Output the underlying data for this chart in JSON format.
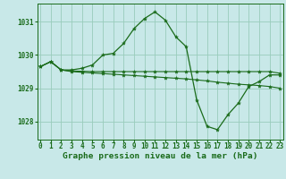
{
  "background_color": "#c8e8e8",
  "grid_color": "#99ccbb",
  "line_color": "#1a6b1a",
  "title": "Graphe pression niveau de la mer (hPa)",
  "tick_fontsize": 5.5,
  "xlabel_fontsize": 6.8,
  "xlim": [
    -0.3,
    23.3
  ],
  "ylim": [
    1027.45,
    1031.55
  ],
  "yticks": [
    1028,
    1029,
    1030,
    1031
  ],
  "xticks": [
    0,
    1,
    2,
    3,
    4,
    5,
    6,
    7,
    8,
    9,
    10,
    11,
    12,
    13,
    14,
    15,
    16,
    17,
    18,
    19,
    20,
    21,
    22,
    23
  ],
  "series1_x": [
    0,
    1,
    2,
    3,
    4,
    5,
    6,
    7,
    8,
    9,
    10,
    11,
    12,
    13,
    14,
    15,
    16,
    17,
    18,
    19,
    20,
    21,
    22,
    23
  ],
  "series1_y": [
    1029.65,
    1029.8,
    1029.55,
    1029.55,
    1029.6,
    1029.7,
    1030.0,
    1030.05,
    1030.35,
    1030.8,
    1031.1,
    1031.3,
    1031.05,
    1030.55,
    1030.25,
    1028.65,
    1027.85,
    1027.75,
    1028.2,
    1028.55,
    1029.05,
    1029.2,
    1029.4,
    1029.4
  ],
  "series2_x": [
    0,
    1,
    2,
    3,
    4,
    5,
    6,
    7,
    8,
    9,
    10,
    11,
    12,
    13,
    14,
    15,
    16,
    17,
    18,
    19,
    20,
    21,
    22,
    23
  ],
  "series2_y": [
    1029.65,
    1029.8,
    1029.55,
    1029.52,
    1029.51,
    1029.5,
    1029.5,
    1029.5,
    1029.5,
    1029.5,
    1029.5,
    1029.5,
    1029.5,
    1029.5,
    1029.5,
    1029.5,
    1029.5,
    1029.5,
    1029.5,
    1029.5,
    1029.5,
    1029.5,
    1029.5,
    1029.45
  ],
  "series3_x": [
    0,
    1,
    2,
    3,
    4,
    5,
    6,
    7,
    8,
    9,
    10,
    11,
    12,
    13,
    14,
    15,
    16,
    17,
    18,
    19,
    20,
    21,
    22,
    23
  ],
  "series3_y": [
    1029.65,
    1029.8,
    1029.55,
    1029.5,
    1029.48,
    1029.46,
    1029.44,
    1029.42,
    1029.4,
    1029.38,
    1029.36,
    1029.34,
    1029.32,
    1029.3,
    1029.28,
    1029.25,
    1029.22,
    1029.18,
    1029.15,
    1029.12,
    1029.1,
    1029.08,
    1029.05,
    1029.0
  ]
}
